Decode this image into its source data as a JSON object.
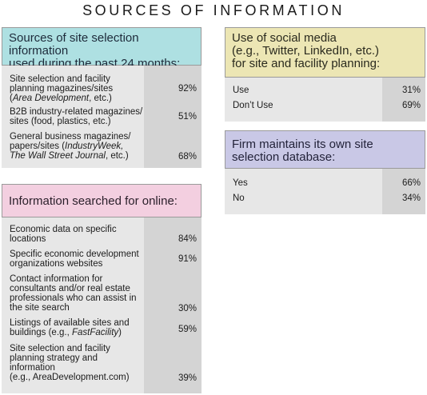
{
  "title": "SOURCES OF INFORMATION",
  "sources": {
    "heading_line1": "Sources of site selection information",
    "heading_line2": "used during the past 24 months:",
    "rows": [
      {
        "line1": "Site selection and facility",
        "line2": "planning magazines/sites",
        "line3_italic": "Area Development",
        "line3_tail": ", etc.)",
        "value": "92%"
      },
      {
        "line1": "B2B industry-related magazines/",
        "line2": "sites (food, plastics, etc.)",
        "value": "51%"
      },
      {
        "line1": "General business magazines/",
        "line2_head": "papers/sites (",
        "line2_italic": "IndustryWeek,",
        "line3_italic": "The Wall Street Journal",
        "line3_tail": ", etc.)",
        "value": "68%"
      }
    ]
  },
  "online": {
    "heading": "Information searched for online:",
    "rows": [
      {
        "line1": "Economic data on specific",
        "line2": "locations",
        "value": "84%"
      },
      {
        "line1": "Specific economic development",
        "line2": "organizations websites",
        "value": "91%"
      },
      {
        "line1": "Contact information for",
        "line2": "consultants and/or real estate",
        "line3": "professionals who can assist in",
        "line4": "the site search",
        "value": "30%"
      },
      {
        "line1": "Listings of available sites and",
        "line2_head": "buildings (e.g., ",
        "line2_italic": "FastFacility",
        "line2_tail": ")",
        "value": "59%"
      },
      {
        "line1": "Site selection and facility",
        "line2": "planning strategy and",
        "line3": "information",
        "line4": "(e.g., AreaDevelopment.com)",
        "value": "39%"
      }
    ]
  },
  "social": {
    "heading_line1": "Use of social media",
    "heading_line2": "(e.g., Twitter, LinkedIn, etc.)",
    "heading_line3": "for site and facility planning:",
    "rows": [
      {
        "label": "Use",
        "value": "31%"
      },
      {
        "label": "Don’t Use",
        "value": "69%"
      }
    ]
  },
  "database": {
    "heading_line1": "Firm maintains its own site",
    "heading_line2": "selection database:",
    "rows": [
      {
        "label": "Yes",
        "value": "66%"
      },
      {
        "label": "No",
        "value": "34%"
      }
    ]
  }
}
